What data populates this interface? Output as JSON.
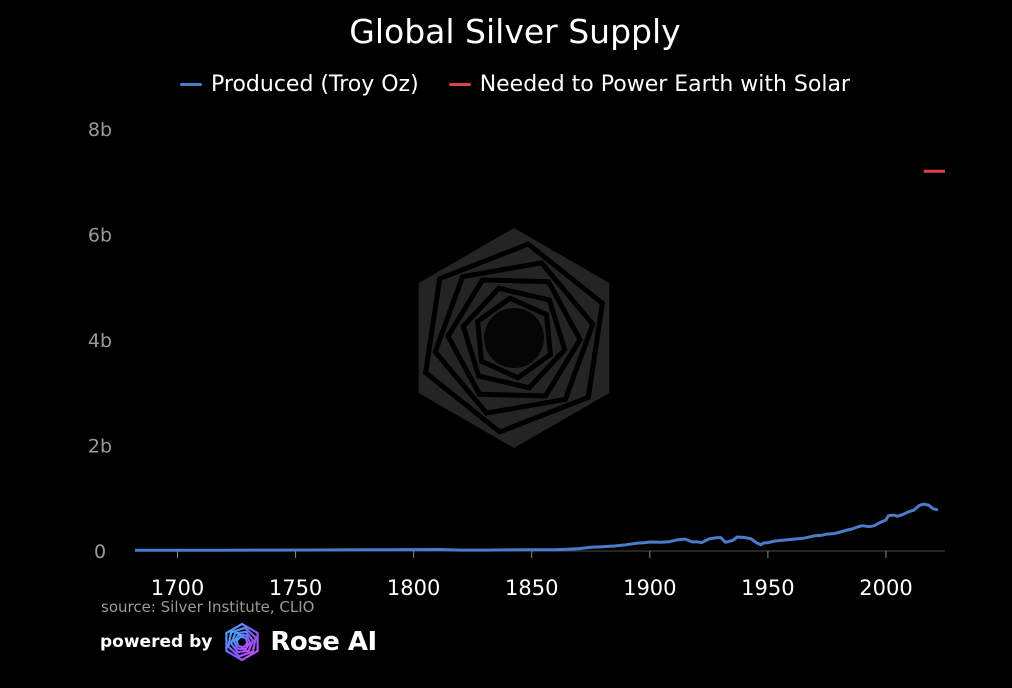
{
  "chart_data": {
    "type": "line",
    "title": "Global Silver Supply",
    "xlabel": "",
    "ylabel": "",
    "xlim": [
      1682,
      2025
    ],
    "ylim": [
      0,
      8000000000
    ],
    "x_ticks": [
      1700,
      1750,
      1800,
      1850,
      1900,
      1950,
      2000
    ],
    "x_tick_labels": [
      "1700",
      "1750",
      "1800",
      "1850",
      "1900",
      "1950",
      "2000"
    ],
    "y_ticks": [
      0,
      2000000000,
      4000000000,
      6000000000,
      8000000000
    ],
    "y_tick_labels": [
      "0",
      "2b",
      "4b",
      "6b",
      "8b"
    ],
    "grid": false,
    "legend_position": "top-center",
    "series": [
      {
        "name": "Produced (Troy Oz)",
        "color": "#4a7cc9",
        "x": [
          1682,
          1700,
          1720,
          1740,
          1760,
          1780,
          1790,
          1800,
          1810,
          1820,
          1830,
          1840,
          1850,
          1860,
          1865,
          1870,
          1875,
          1880,
          1885,
          1890,
          1895,
          1898,
          1900,
          1905,
          1908,
          1912,
          1915,
          1918,
          1920,
          1922,
          1925,
          1928,
          1930,
          1932,
          1935,
          1937,
          1940,
          1943,
          1945,
          1947,
          1948,
          1950,
          1953,
          1955,
          1958,
          1960,
          1965,
          1970,
          1973,
          1975,
          1978,
          1980,
          1983,
          1985,
          1988,
          1990,
          1993,
          1995,
          1998,
          2000,
          2001,
          2003,
          2005,
          2007,
          2010,
          2012,
          2014,
          2016,
          2018,
          2020,
          2022
        ],
        "y": [
          13000000,
          14000000,
          15000000,
          17000000,
          19000000,
          22000000,
          25000000,
          27000000,
          28000000,
          18000000,
          18000000,
          20000000,
          25000000,
          25000000,
          32000000,
          45000000,
          70000000,
          80000000,
          95000000,
          120000000,
          150000000,
          160000000,
          170000000,
          165000000,
          175000000,
          215000000,
          225000000,
          170000000,
          175000000,
          160000000,
          230000000,
          250000000,
          255000000,
          165000000,
          200000000,
          265000000,
          255000000,
          230000000,
          160000000,
          120000000,
          150000000,
          160000000,
          190000000,
          200000000,
          210000000,
          220000000,
          240000000,
          290000000,
          300000000,
          320000000,
          330000000,
          350000000,
          390000000,
          410000000,
          455000000,
          480000000,
          460000000,
          480000000,
          550000000,
          590000000,
          670000000,
          680000000,
          660000000,
          690000000,
          750000000,
          780000000,
          860000000,
          890000000,
          870000000,
          800000000,
          780000000
        ]
      },
      {
        "name": "Needed to Power Earth with Solar",
        "color": "#d9434b",
        "x": [
          2016,
          2025
        ],
        "y": [
          7200000000,
          7200000000
        ]
      }
    ]
  },
  "source_text": "source: Silver Institute, CLIO",
  "footer": {
    "powered_by": "powered by",
    "brand": "Rose AI",
    "logo_icon": "rose-ai-logo-icon",
    "watermark_icon": "rose-ai-watermark-icon"
  }
}
